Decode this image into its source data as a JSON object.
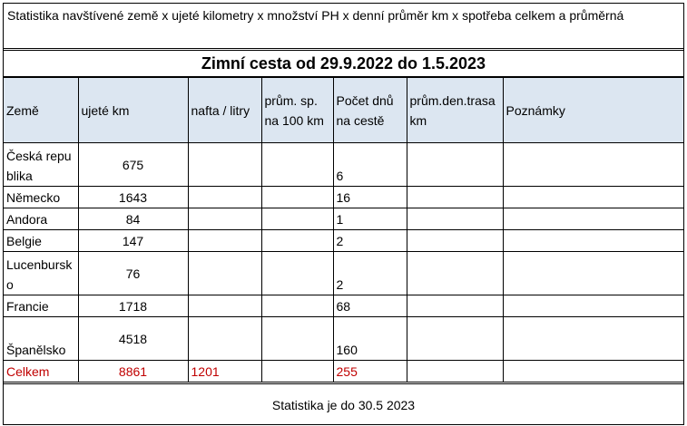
{
  "title": "Statistika navštívené země x ujeté kilometry x množství PH x denní průměr km x spotřeba celkem a průměrná",
  "subtitle": "Zimní cesta od 29.9.2022  do  1.5.2023",
  "table": {
    "headers": [
      "Země",
      "ujeté km",
      "nafta / litry",
      "prům. sp. na 100 km",
      "Počet dnů na cestě",
      "prům.den.trasa km",
      "Poznámky"
    ],
    "rows": [
      [
        "Česká republika",
        675,
        null,
        null,
        6,
        null,
        null
      ],
      [
        "Německo",
        1643,
        null,
        null,
        16,
        null,
        null
      ],
      [
        "Andora",
        84,
        null,
        null,
        1,
        null,
        null
      ],
      [
        "Belgie",
        147,
        null,
        null,
        2,
        null,
        null
      ],
      [
        "Lucenbursko",
        76,
        null,
        null,
        2,
        null,
        null
      ],
      [
        "Francie",
        1718,
        null,
        null,
        68,
        null,
        null
      ],
      [
        "Španělsko",
        4518,
        null,
        null,
        160,
        null,
        null
      ]
    ],
    "total": [
      "Celkem",
      8861,
      1201,
      null,
      255,
      null,
      null
    ]
  },
  "footer": "Statistika je do 30.5 2023"
}
